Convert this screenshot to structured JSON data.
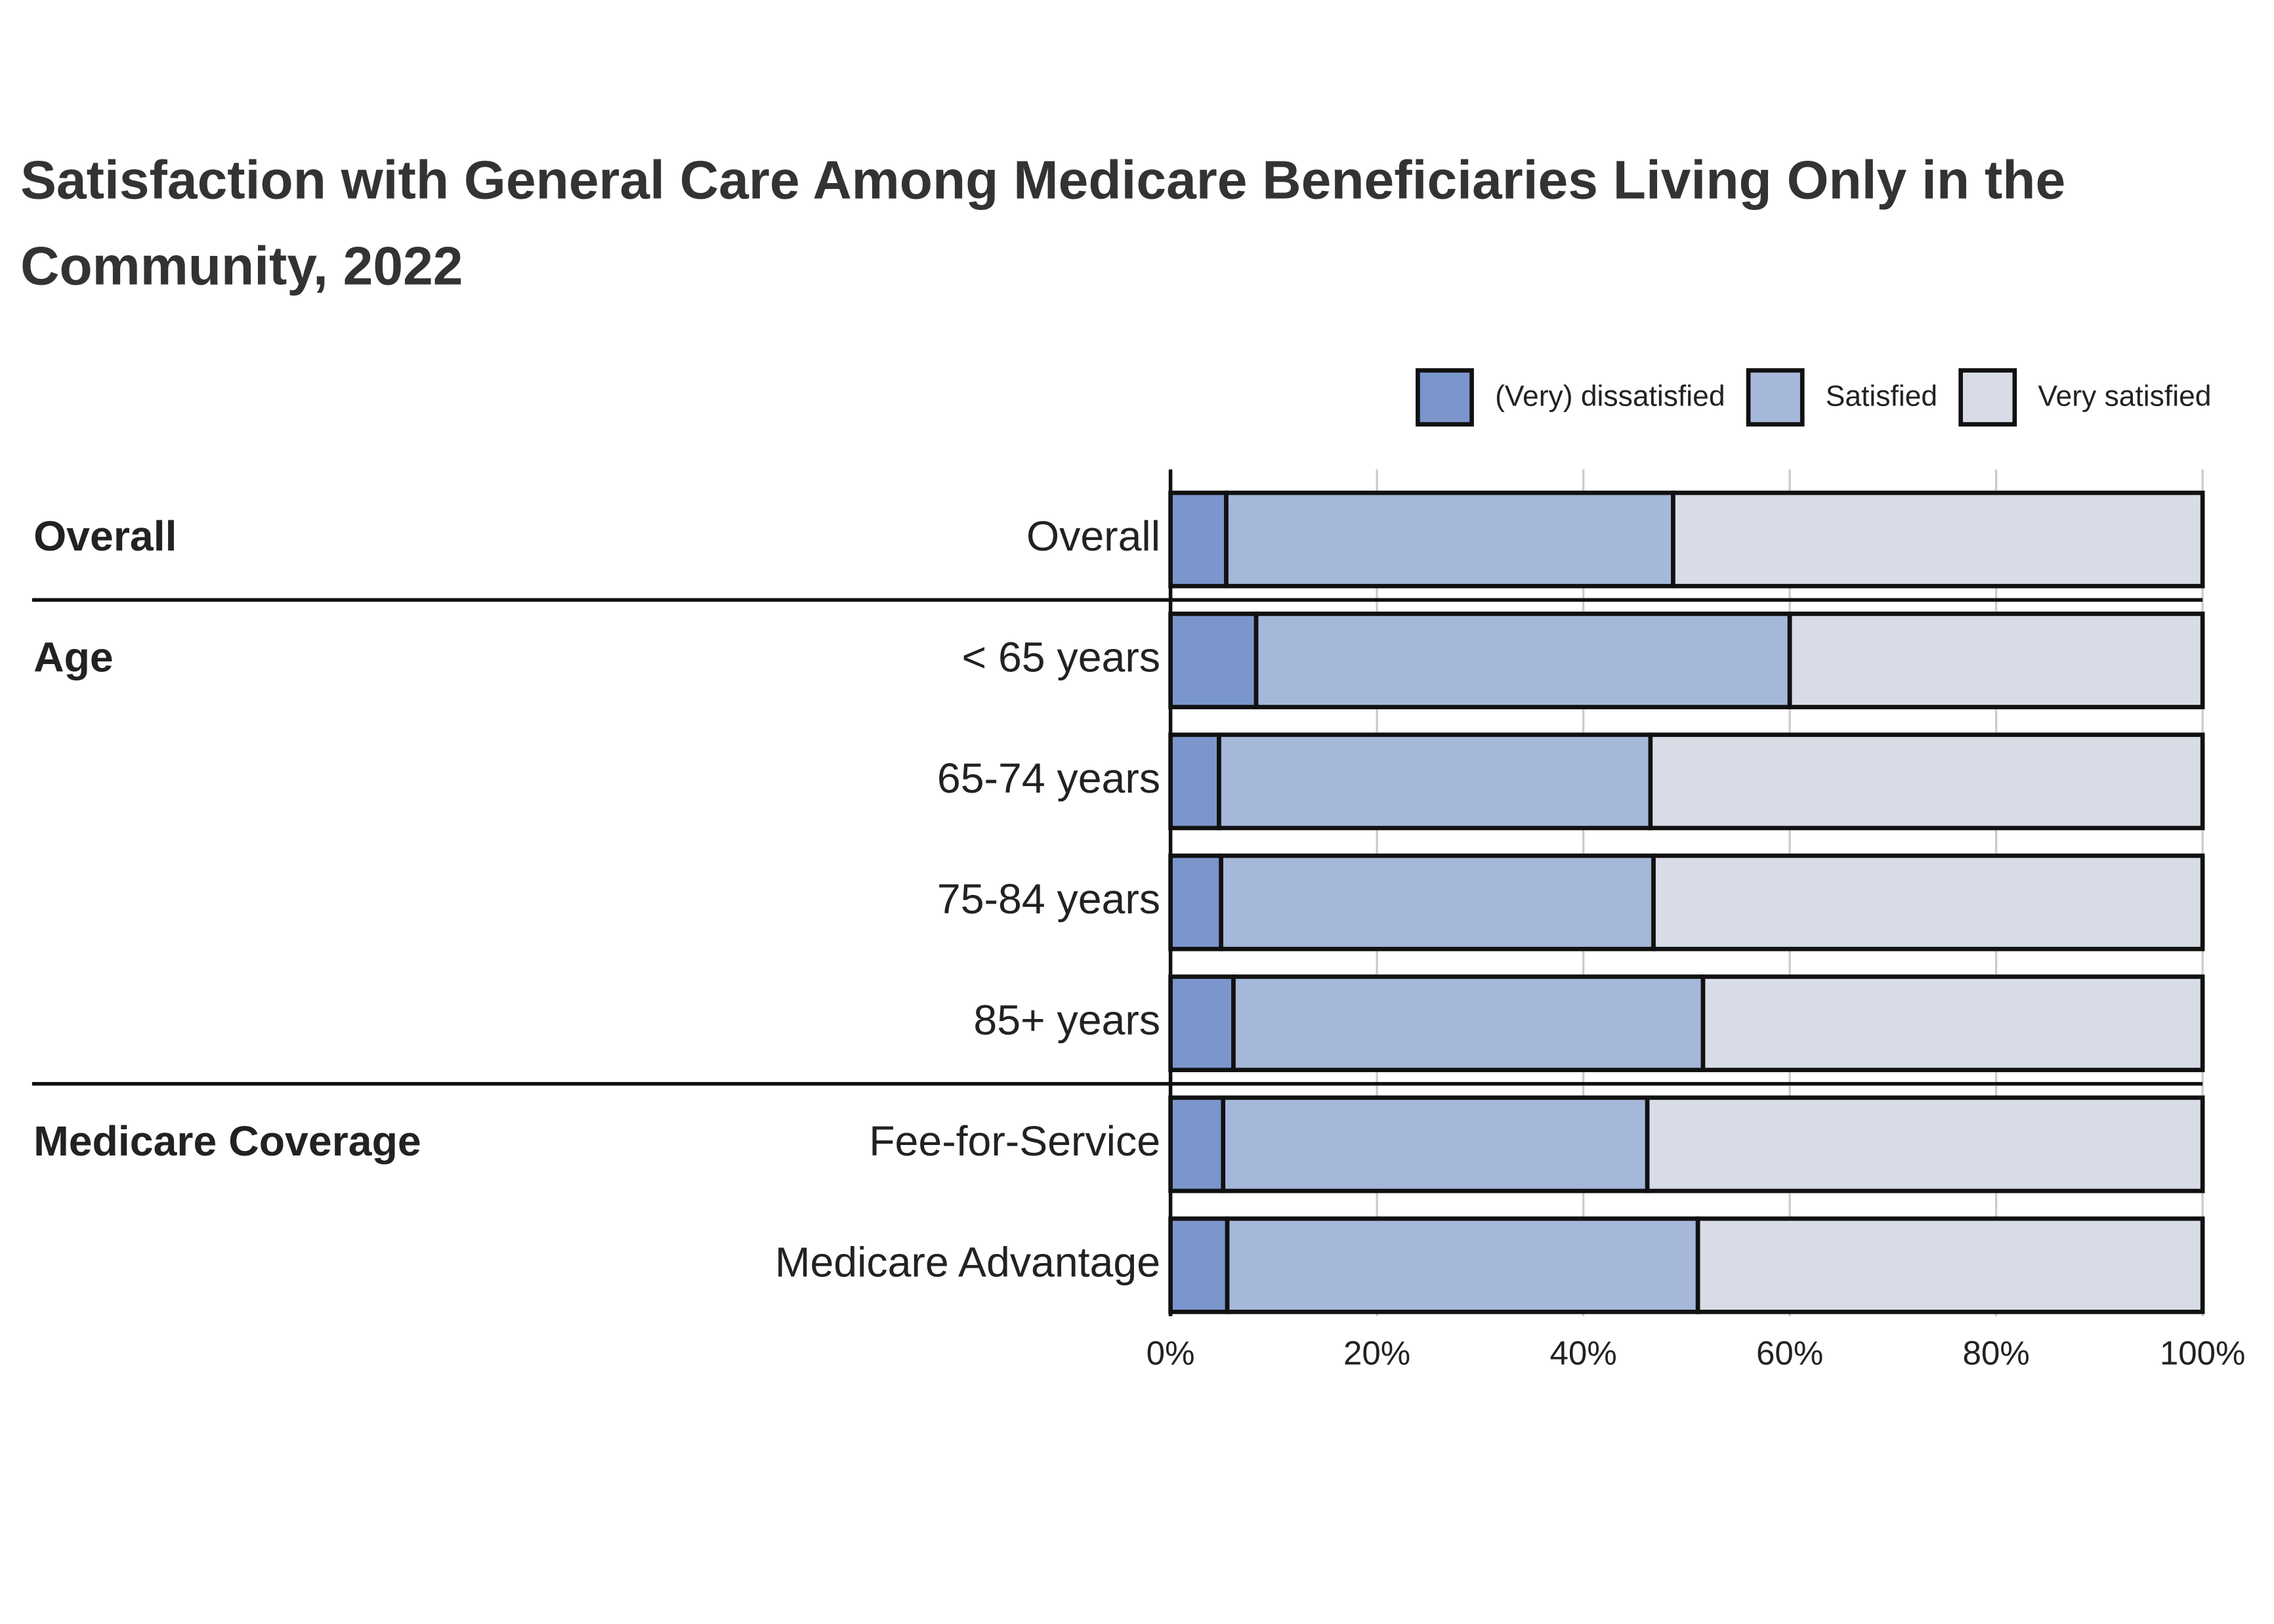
{
  "chart_data": {
    "type": "stacked-bar-horizontal",
    "title": "Satisfaction with General Care Among Medicare Beneficiaries Living Only in the Community, 2022",
    "categories": [
      "Overall",
      "< 65 years",
      "65-74 years",
      "75-84 years",
      "85+ years",
      "Fee-for-Service",
      "Medicare Advantage"
    ],
    "groups": [
      "Overall",
      "Age",
      "Age",
      "Age",
      "Age",
      "Medicare Coverage",
      "Medicare Coverage"
    ],
    "series": [
      {
        "name": "(Very) dissatisfied",
        "color": "#7b96cc",
        "values": [
          5.4,
          8.3,
          4.7,
          4.9,
          6.1,
          5.1,
          5.5
        ]
      },
      {
        "name": "Satisfied",
        "color": "#a6b8da",
        "values": [
          43.3,
          51.7,
          41.8,
          41.9,
          45.5,
          41.1,
          45.6
        ]
      },
      {
        "name": "Very satisfied",
        "color": "#d7dce6",
        "values": [
          51.3,
          40.0,
          53.5,
          53.2,
          48.4,
          53.8,
          48.9
        ]
      }
    ],
    "xlim": [
      0,
      100
    ],
    "xticks": [
      {
        "value": 0,
        "label": "0%"
      },
      {
        "value": 20,
        "label": "20%"
      },
      {
        "value": 40,
        "label": "40%"
      },
      {
        "value": 60,
        "label": "60%"
      },
      {
        "value": 80,
        "label": "80%"
      },
      {
        "value": 100,
        "label": "100%"
      }
    ],
    "grid": true,
    "legend": "top-right"
  }
}
